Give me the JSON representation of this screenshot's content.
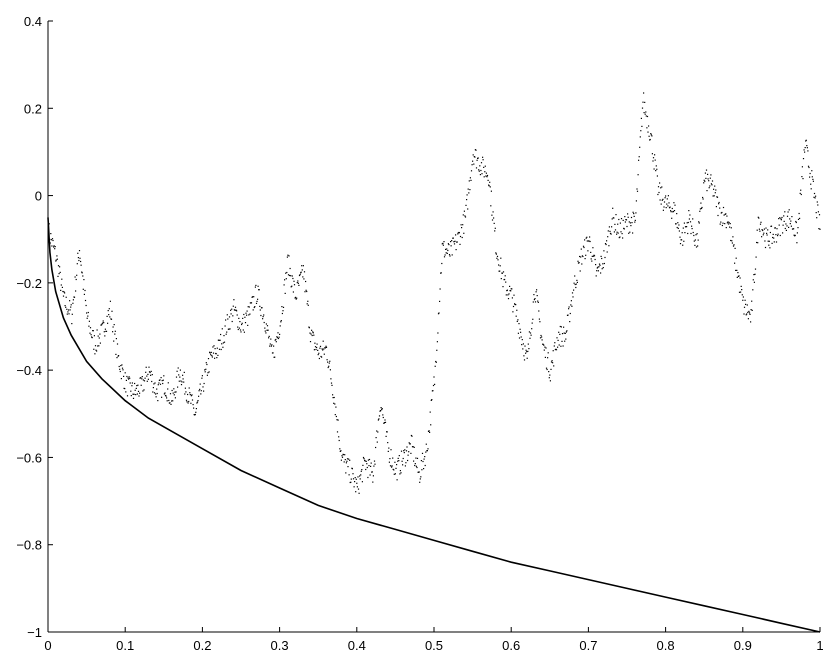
{
  "chart_data": {
    "type": "scatter",
    "title": "",
    "xlabel": "",
    "ylabel": "",
    "xlim": [
      0,
      1
    ],
    "ylim": [
      -1,
      0.4
    ],
    "grid": false,
    "legend": "none",
    "x_ticks": [
      0,
      0.1,
      0.2,
      0.3,
      0.4,
      0.5,
      0.6,
      0.7,
      0.8,
      0.9,
      1
    ],
    "x_tick_labels": [
      "0",
      "0.1",
      "0.2",
      "0.3",
      "0.4",
      "0.5",
      "0.6",
      "0.7",
      "0.8",
      "0.9",
      "1"
    ],
    "y_ticks": [
      -1,
      -0.8,
      -0.6,
      -0.4,
      -0.2,
      0,
      0.2,
      0.4
    ],
    "y_tick_labels": [
      "−1",
      "−0.8",
      "−0.6",
      "−0.4",
      "−0.2",
      "0",
      "0.2",
      "0.4"
    ],
    "colors": {
      "ink": "#000000",
      "background": "#ffffff"
    },
    "series": [
      {
        "style": "dotted-scatter",
        "x": [
          0.0,
          0.01,
          0.02,
          0.03,
          0.04,
          0.05,
          0.06,
          0.07,
          0.08,
          0.09,
          0.1,
          0.11,
          0.12,
          0.13,
          0.14,
          0.15,
          0.16,
          0.17,
          0.18,
          0.19,
          0.2,
          0.21,
          0.22,
          0.23,
          0.24,
          0.25,
          0.26,
          0.27,
          0.28,
          0.29,
          0.3,
          0.31,
          0.32,
          0.33,
          0.34,
          0.35,
          0.36,
          0.37,
          0.38,
          0.39,
          0.4,
          0.41,
          0.42,
          0.43,
          0.44,
          0.45,
          0.46,
          0.47,
          0.48,
          0.49,
          0.5,
          0.51,
          0.52,
          0.53,
          0.54,
          0.55,
          0.56,
          0.57,
          0.58,
          0.59,
          0.6,
          0.61,
          0.62,
          0.63,
          0.64,
          0.65,
          0.66,
          0.67,
          0.68,
          0.69,
          0.7,
          0.71,
          0.72,
          0.73,
          0.74,
          0.75,
          0.76,
          0.77,
          0.78,
          0.79,
          0.8,
          0.81,
          0.82,
          0.83,
          0.84,
          0.85,
          0.86,
          0.87,
          0.88,
          0.89,
          0.9,
          0.91,
          0.92,
          0.93,
          0.94,
          0.95,
          0.96,
          0.97,
          0.98,
          0.99,
          1.0
        ],
        "y": [
          -0.08,
          -0.14,
          -0.24,
          -0.27,
          -0.12,
          -0.28,
          -0.34,
          -0.31,
          -0.26,
          -0.37,
          -0.43,
          -0.45,
          -0.44,
          -0.4,
          -0.45,
          -0.43,
          -0.47,
          -0.4,
          -0.45,
          -0.5,
          -0.43,
          -0.37,
          -0.35,
          -0.3,
          -0.26,
          -0.3,
          -0.27,
          -0.22,
          -0.28,
          -0.37,
          -0.29,
          -0.15,
          -0.23,
          -0.17,
          -0.32,
          -0.36,
          -0.35,
          -0.46,
          -0.6,
          -0.63,
          -0.67,
          -0.61,
          -0.64,
          -0.47,
          -0.58,
          -0.63,
          -0.6,
          -0.57,
          -0.64,
          -0.58,
          -0.42,
          -0.12,
          -0.13,
          -0.1,
          -0.05,
          0.1,
          0.07,
          0.05,
          -0.12,
          -0.2,
          -0.23,
          -0.3,
          -0.38,
          -0.21,
          -0.34,
          -0.4,
          -0.32,
          -0.32,
          -0.21,
          -0.14,
          -0.1,
          -0.18,
          -0.14,
          -0.05,
          -0.08,
          -0.06,
          -0.06,
          0.22,
          0.14,
          0.01,
          -0.02,
          -0.03,
          -0.1,
          -0.05,
          -0.11,
          0.04,
          0.02,
          -0.04,
          -0.05,
          -0.15,
          -0.25,
          -0.28,
          -0.05,
          -0.1,
          -0.09,
          -0.06,
          -0.05,
          -0.09,
          0.12,
          0.02,
          -0.08
        ]
      },
      {
        "style": "solid-line",
        "x": [
          0.0,
          0.0025,
          0.005,
          0.01,
          0.02,
          0.03,
          0.05,
          0.07,
          0.1,
          0.13,
          0.16,
          0.2,
          0.25,
          0.3,
          0.35,
          0.4,
          0.45,
          0.5,
          0.55,
          0.6,
          0.65,
          0.7,
          0.75,
          0.8,
          0.85,
          0.9,
          0.95,
          1.0
        ],
        "y": [
          -0.05,
          -0.13,
          -0.17,
          -0.22,
          -0.28,
          -0.32,
          -0.38,
          -0.42,
          -0.47,
          -0.51,
          -0.54,
          -0.58,
          -0.63,
          -0.67,
          -0.71,
          -0.74,
          -0.765,
          -0.79,
          -0.815,
          -0.84,
          -0.86,
          -0.88,
          -0.9,
          -0.92,
          -0.94,
          -0.96,
          -0.98,
          -1.0
        ]
      }
    ]
  }
}
